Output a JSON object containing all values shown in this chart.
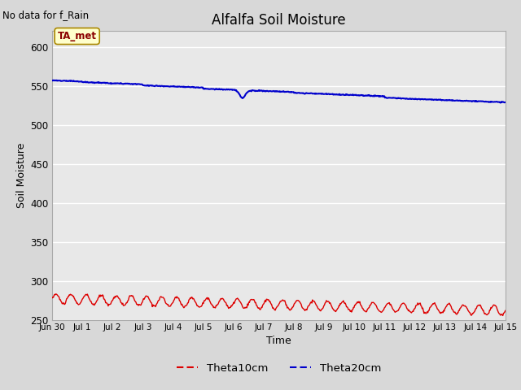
{
  "title": "Alfalfa Soil Moisture",
  "no_data_text": "No data for f_Rain",
  "xlabel": "Time",
  "ylabel": "Soil Moisture",
  "legend_label": "TA_met",
  "ylim": [
    250,
    620
  ],
  "yticks": [
    250,
    300,
    350,
    400,
    450,
    500,
    550,
    600
  ],
  "xtick_labels": [
    "Jun 30",
    "Jul 1",
    "Jul 2",
    "Jul 3",
    "Jul 4",
    "Jul 5",
    "Jul 6",
    "Jul 7",
    "Jul 8",
    "Jul 9",
    "Jul 10",
    "Jul 11",
    "Jul 12",
    "Jul 13",
    "Jul 14",
    "Jul 15"
  ],
  "plot_bg_color": "#e8e8e8",
  "fig_bg_color": "#d8d8d8",
  "grid_color": "#ffffff",
  "theta10_color": "#dd0000",
  "theta20_color": "#0000cc",
  "line1_legend": "Theta10cm",
  "line2_legend": "Theta20cm",
  "num_points": 720
}
